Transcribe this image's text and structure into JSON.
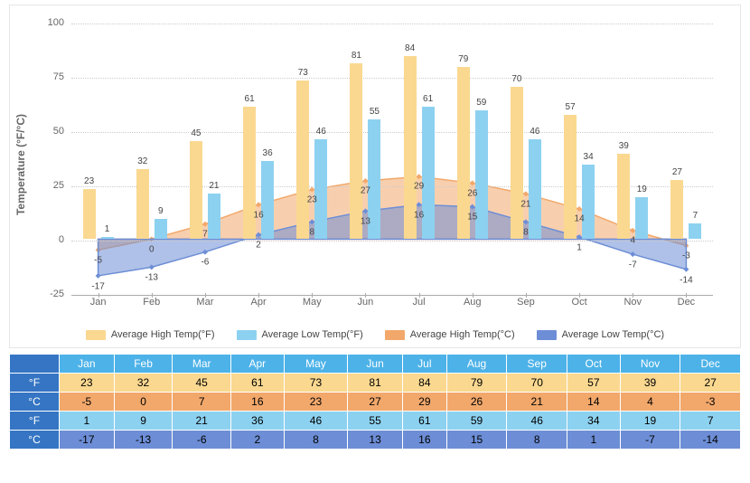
{
  "chart": {
    "ylabel": "Temperature (°F/°C)",
    "ylim": [
      -25,
      100
    ],
    "yticks": [
      -25,
      0,
      25,
      50,
      75,
      100
    ],
    "categories": [
      "Jan",
      "Feb",
      "Mar",
      "Apr",
      "May",
      "Jun",
      "Jul",
      "Aug",
      "Sep",
      "Oct",
      "Nov",
      "Dec"
    ],
    "background": "#ffffff",
    "grid_color": "#cccccc",
    "series": {
      "high_f": {
        "type": "bar",
        "label": "Average High Temp(°F)",
        "color": "#fad890",
        "values": [
          23,
          32,
          45,
          61,
          73,
          81,
          84,
          79,
          70,
          57,
          39,
          27
        ]
      },
      "low_f": {
        "type": "bar",
        "label": "Average Low Temp(°F)",
        "color": "#8dd1f0",
        "values": [
          1,
          9,
          21,
          36,
          46,
          55,
          61,
          59,
          46,
          34,
          19,
          7
        ]
      },
      "high_c": {
        "type": "area",
        "label": "Average High Temp(°C)",
        "color": "#f2a86b",
        "fill": "rgba(242,168,107,0.55)",
        "values": [
          -5,
          0,
          7,
          16,
          23,
          27,
          29,
          26,
          21,
          14,
          4,
          -3
        ]
      },
      "low_c": {
        "type": "area",
        "label": "Average Low Temp(°C)",
        "color": "#6d8ed6",
        "fill": "rgba(109,142,214,0.55)",
        "values": [
          -17,
          -13,
          -6,
          2,
          8,
          13,
          16,
          15,
          8,
          1,
          -7,
          -14
        ]
      }
    },
    "legend_order": [
      "high_f",
      "low_f",
      "high_c",
      "low_c"
    ]
  },
  "table": {
    "header_bg": "#4db2e8",
    "header_text": "#ffffff",
    "unit_bg": "#3575c3",
    "unit_text": "#ffffff",
    "rows": [
      {
        "unit": "°F",
        "bg": "#fad890",
        "vals": [
          23,
          32,
          45,
          61,
          73,
          81,
          84,
          79,
          70,
          57,
          39,
          27
        ]
      },
      {
        "unit": "°C",
        "bg": "#f2a86b",
        "vals": [
          -5,
          0,
          7,
          16,
          23,
          27,
          29,
          26,
          21,
          14,
          4,
          -3
        ]
      },
      {
        "unit": "°F",
        "bg": "#8dd1f0",
        "vals": [
          1,
          9,
          21,
          36,
          46,
          55,
          61,
          59,
          46,
          34,
          19,
          7
        ]
      },
      {
        "unit": "°C",
        "bg": "#6d8ed6",
        "vals": [
          -17,
          -13,
          -6,
          2,
          8,
          13,
          16,
          15,
          8,
          1,
          -7,
          -14
        ]
      }
    ]
  }
}
